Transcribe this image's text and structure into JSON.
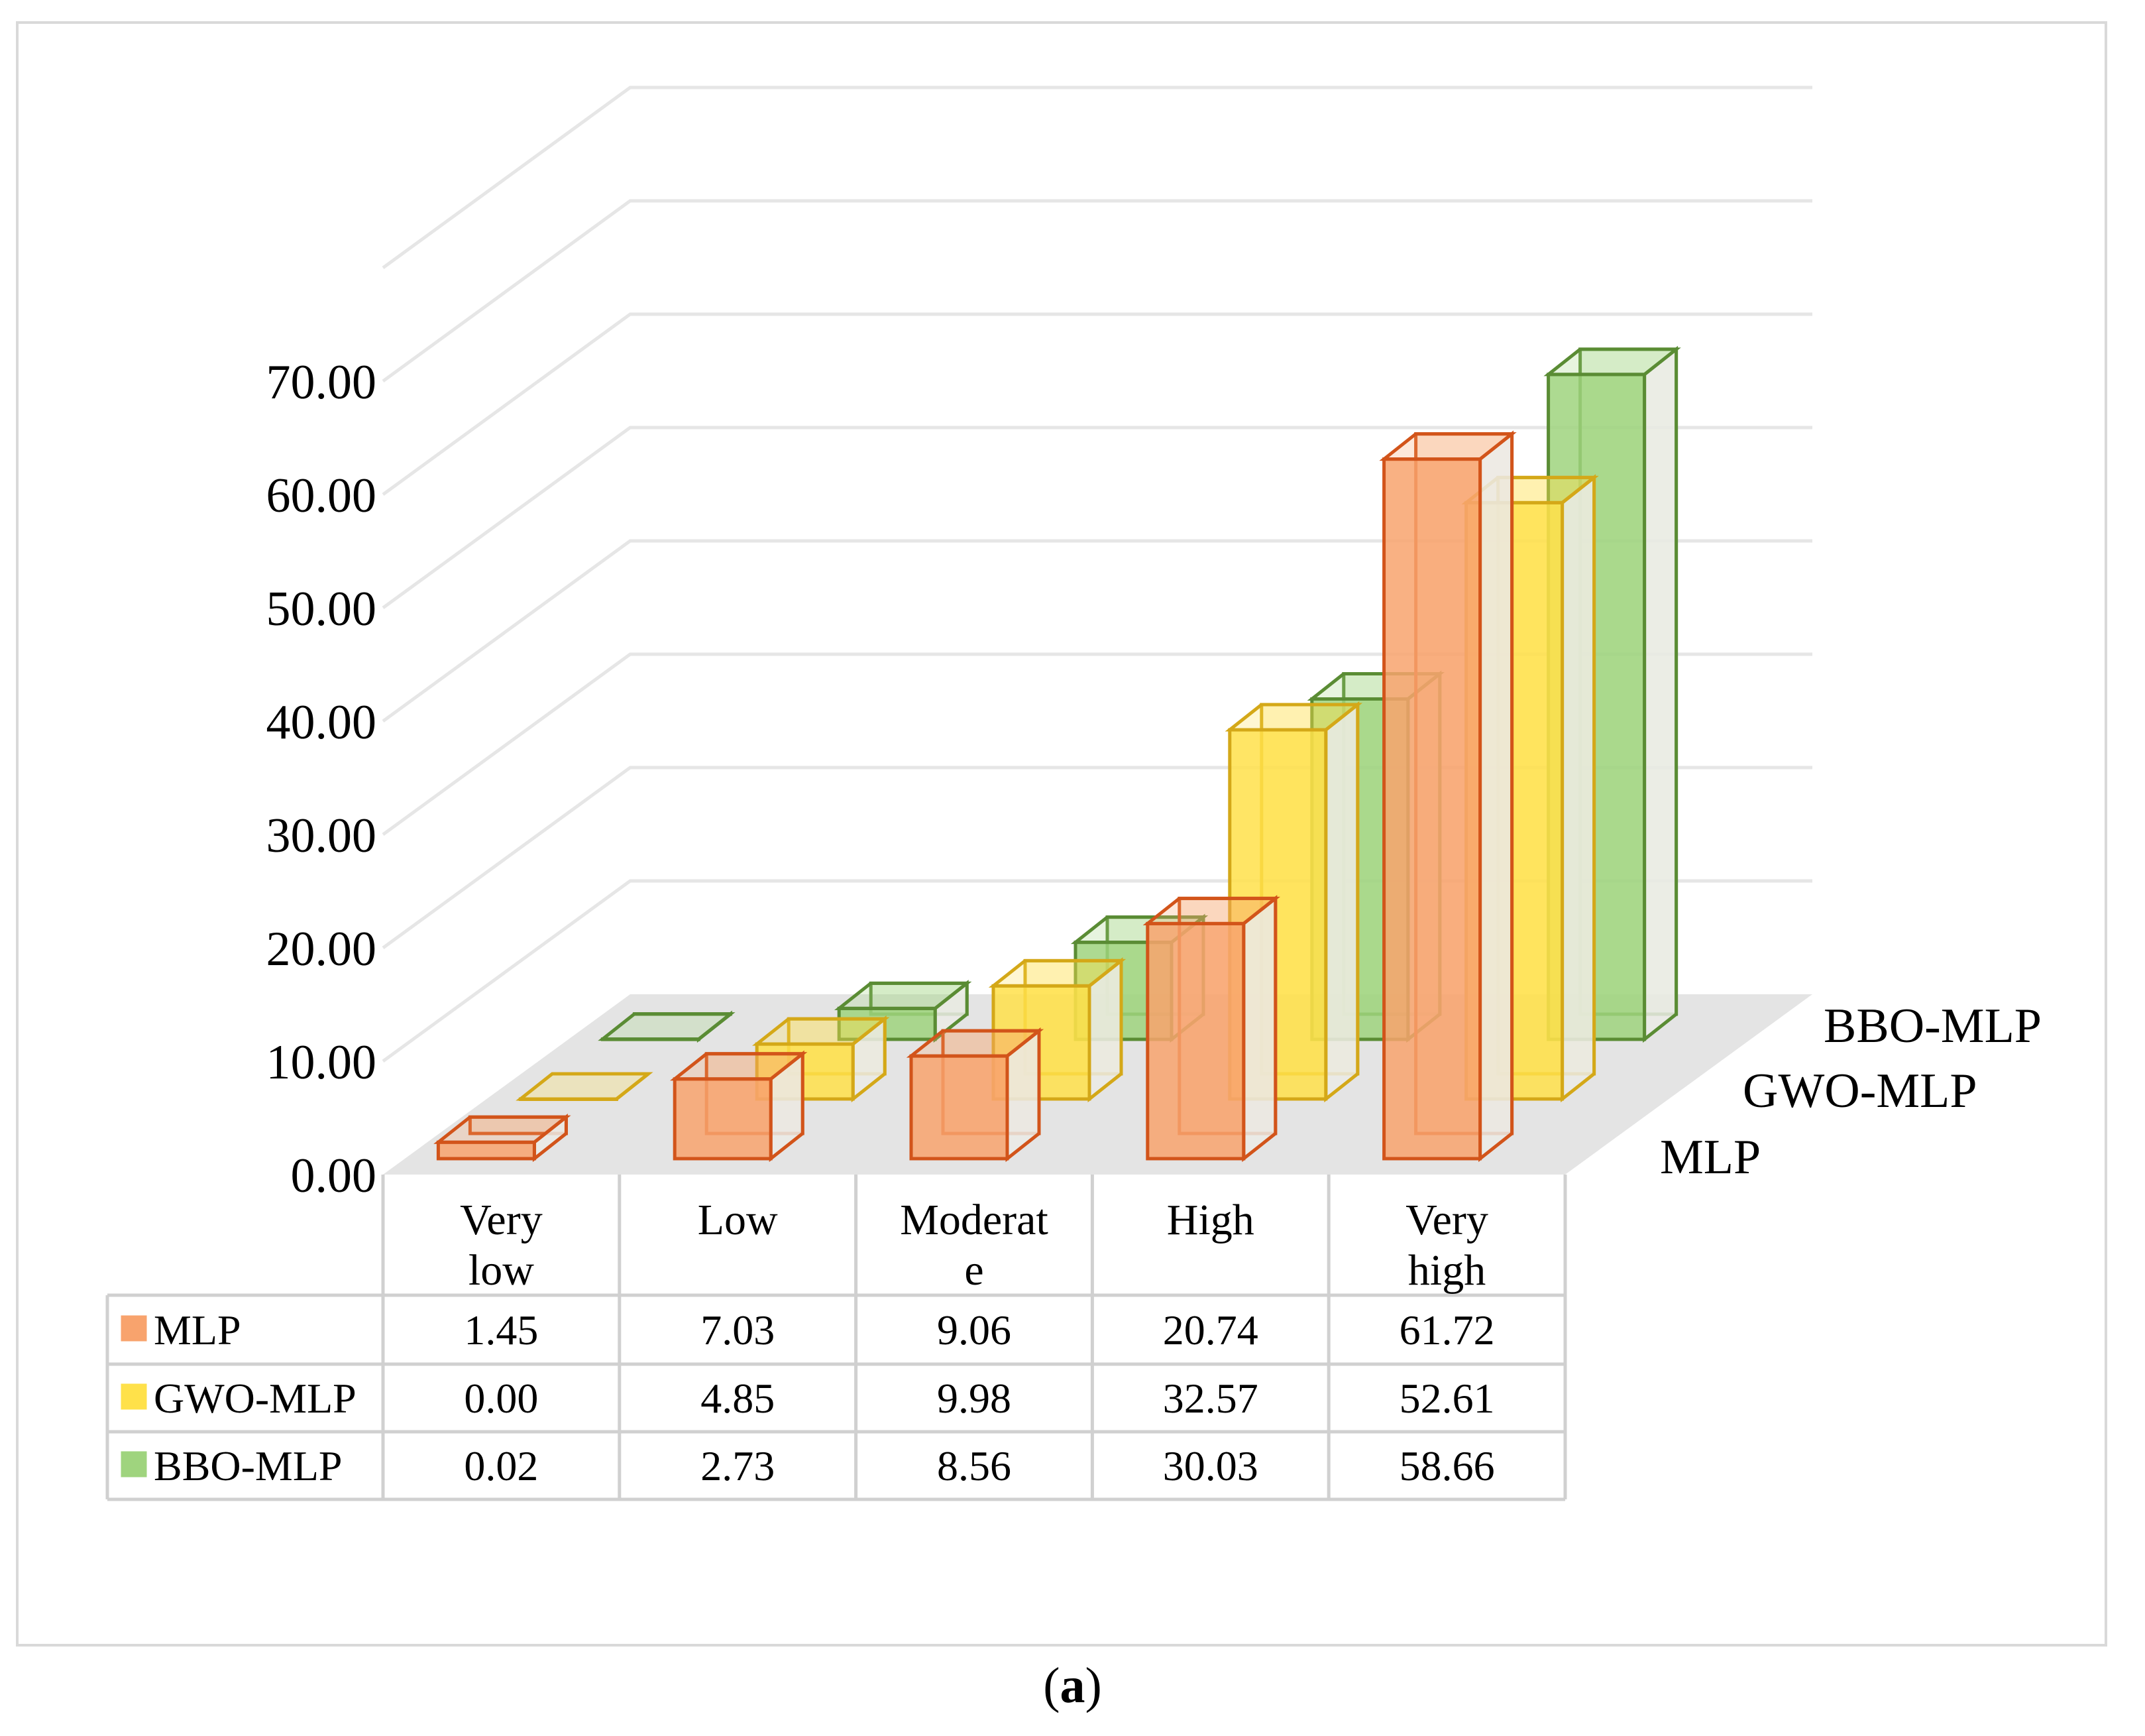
{
  "chart_data": {
    "type": "bar",
    "style": "3d-clustered-columns-with-data-table",
    "categories": [
      "Very low",
      "Low",
      "Moderate",
      "High",
      "Very high"
    ],
    "category_labels": [
      [
        "Very",
        "low"
      ],
      [
        "Low"
      ],
      [
        "Moderat",
        "e"
      ],
      [
        "High"
      ],
      [
        "Very",
        "high"
      ]
    ],
    "series": [
      {
        "name": "MLP",
        "values": [
          1.45,
          7.03,
          9.06,
          20.74,
          61.72
        ]
      },
      {
        "name": "GWO-MLP",
        "values": [
          0.0,
          4.85,
          9.98,
          32.57,
          52.61
        ]
      },
      {
        "name": "BBO-MLP",
        "values": [
          0.02,
          2.73,
          8.56,
          30.03,
          58.66
        ]
      }
    ],
    "table_values": [
      [
        "1.45",
        "7.03",
        "9.06",
        "20.74",
        "61.72"
      ],
      [
        "0.00",
        "4.85",
        "9.98",
        "32.57",
        "52.61"
      ],
      [
        "0.02",
        "2.73",
        "8.56",
        "30.03",
        "58.66"
      ]
    ],
    "depth_axis_labels": [
      "BBO-MLP",
      "GWO-MLP",
      "MLP"
    ],
    "y_ticks": [
      "0.00",
      "10.00",
      "20.00",
      "30.00",
      "40.00",
      "50.00",
      "60.00",
      "70.00"
    ],
    "ylim": [
      0,
      70
    ],
    "grid": true,
    "legend": "in data table",
    "colors": {
      "MLP": {
        "fill": "#f8a36d",
        "stroke": "#d2541a"
      },
      "GWO-MLP": {
        "fill": "#ffe14a",
        "stroke": "#d4a818"
      },
      "BBO-MLP": {
        "fill": "#9fd47e",
        "stroke": "#5a8c34"
      }
    }
  },
  "caption": {
    "letter": "a",
    "open": "(",
    "close": ")"
  }
}
